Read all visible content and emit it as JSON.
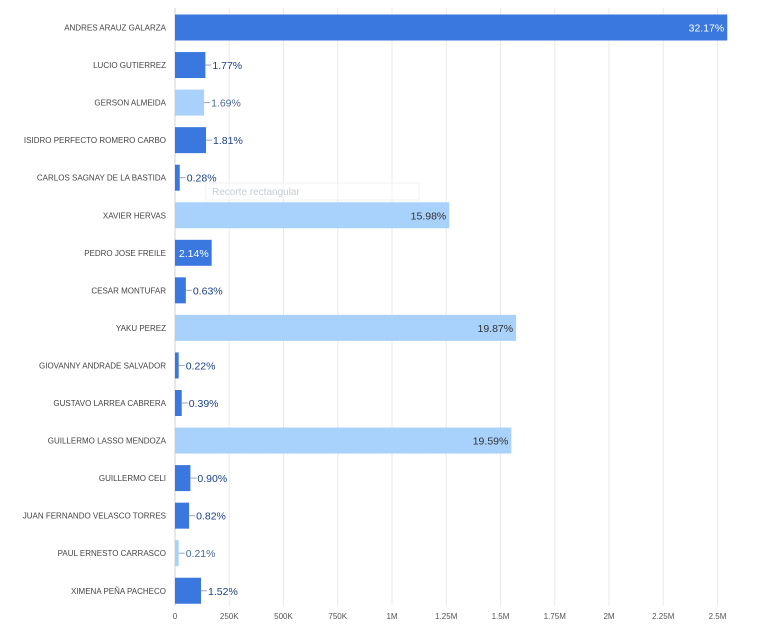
{
  "chart_data": {
    "type": "bar",
    "orientation": "horizontal",
    "categories": [
      "ANDRES ARAUZ GALARZA",
      "LUCIO GUTIERREZ",
      "GERSON ALMEIDA",
      "ISIDRO PERFECTO ROMERO CARBO",
      "CARLOS SAGNAY DE LA BASTIDA",
      "XAVIER HERVAS",
      "PEDRO JOSE FREILE",
      "CESAR MONTUFAR",
      "YAKU PEREZ",
      "GIOVANNY ANDRADE SALVADOR",
      "GUSTAVO LARREA CABRERA",
      "GUILLERMO LASSO MENDOZA",
      "GUILLERMO CELI",
      "JUAN FERNANDO VELASCO TORRES",
      "PAUL ERNESTO CARRASCO",
      "XIMENA PEÑA PACHECO"
    ],
    "values": [
      2545000,
      140000,
      134000,
      143000,
      22000,
      1264000,
      169000,
      50000,
      1572000,
      17000,
      31000,
      1550000,
      71000,
      65000,
      17000,
      120000
    ],
    "labels": [
      "32.17%",
      "1.77%",
      "1.69%",
      "1.81%",
      "0.28%",
      "15.98%",
      "2.14%",
      "0.63%",
      "19.87%",
      "0.22%",
      "0.39%",
      "19.59%",
      "0.90%",
      "0.82%",
      "0.21%",
      "1.52%"
    ],
    "bar_colors": [
      "#3a78e0",
      "#3a78e0",
      "#a8d1fb",
      "#3a78e0",
      "#3a78e0",
      "#a8d1fb",
      "#3a78e0",
      "#3a78e0",
      "#a8d1fb",
      "#3a78e0",
      "#3a78e0",
      "#a8d1fb",
      "#3a78e0",
      "#3a78e0",
      "#a8d1fb",
      "#3a78e0"
    ],
    "x_ticks": [
      "0",
      "250K",
      "500K",
      "750K",
      "1M",
      "1.25M",
      "1.5M",
      "1.75M",
      "2M",
      "2.25M",
      "2.5M"
    ],
    "x_tick_values": [
      0,
      250000,
      500000,
      750000,
      1000000,
      1250000,
      1500000,
      1750000,
      2000000,
      2250000,
      2500000
    ],
    "xlim": [
      0,
      2500000
    ],
    "grid": true,
    "label_color_inside_dark": "#ffffff",
    "label_color_inside_light": "#333333",
    "label_color_outside_dark": "#1a3f8a",
    "label_color_outside_light": "#4a6a9a",
    "title": "",
    "xlabel": "",
    "ylabel": ""
  },
  "overlay": {
    "text": "Recorte rectangular"
  }
}
